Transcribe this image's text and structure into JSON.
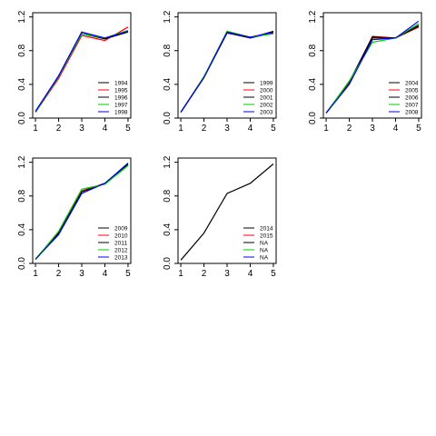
{
  "chart_data": [
    {
      "type": "line",
      "x": [
        1,
        2,
        3,
        4,
        5
      ],
      "ylim": [
        0,
        1.25
      ],
      "yticks": [
        "0.0",
        "0.4",
        "0.8",
        "1.2"
      ],
      "xticks": [
        "1",
        "2",
        "3",
        "4",
        "5"
      ],
      "grid": false,
      "legend_position": "bottom-right",
      "series": [
        {
          "name": "1994",
          "color": "#000000",
          "values": [
            0.07,
            0.48,
            1.0,
            0.94,
            1.02
          ]
        },
        {
          "name": "1995",
          "color": "#ff0000",
          "values": [
            0.07,
            0.47,
            0.98,
            0.92,
            1.08
          ]
        },
        {
          "name": "1996",
          "color": "#000000",
          "values": [
            0.08,
            0.5,
            1.02,
            0.94,
            1.03
          ]
        },
        {
          "name": "1997",
          "color": "#00cc00",
          "values": [
            0.07,
            0.49,
            1.0,
            0.95,
            1.04
          ]
        },
        {
          "name": "1998",
          "color": "#0000ff",
          "values": [
            0.08,
            0.5,
            1.02,
            0.95,
            1.03
          ]
        }
      ]
    },
    {
      "type": "line",
      "x": [
        1,
        2,
        3,
        4,
        5
      ],
      "ylim": [
        0,
        1.25
      ],
      "yticks": [
        "0.0",
        "0.4",
        "0.8",
        "1.2"
      ],
      "xticks": [
        "1",
        "2",
        "3",
        "4",
        "5"
      ],
      "grid": false,
      "legend_position": "bottom-right",
      "series": [
        {
          "name": "1999",
          "color": "#000000",
          "values": [
            0.07,
            0.48,
            1.01,
            0.95,
            1.01
          ]
        },
        {
          "name": "2000",
          "color": "#ff0000",
          "values": [
            0.07,
            0.48,
            1.02,
            0.95,
            1.02
          ]
        },
        {
          "name": "2001",
          "color": "#000000",
          "values": [
            0.07,
            0.49,
            1.02,
            0.95,
            1.03
          ]
        },
        {
          "name": "2002",
          "color": "#00cc00",
          "values": [
            0.07,
            0.49,
            1.03,
            0.96,
            1.0
          ]
        },
        {
          "name": "2003",
          "color": "#0000ff",
          "values": [
            0.07,
            0.48,
            1.02,
            0.96,
            1.02
          ]
        }
      ]
    },
    {
      "type": "line",
      "x": [
        1,
        2,
        3,
        4,
        5
      ],
      "ylim": [
        0,
        1.25
      ],
      "yticks": [
        "0.0",
        "0.4",
        "0.8",
        "1.2"
      ],
      "xticks": [
        "1",
        "2",
        "3",
        "4",
        "5"
      ],
      "grid": false,
      "legend_position": "bottom-right",
      "series": [
        {
          "name": "2004",
          "color": "#000000",
          "values": [
            0.06,
            0.42,
            0.95,
            0.95,
            1.1
          ]
        },
        {
          "name": "2005",
          "color": "#ff0000",
          "values": [
            0.06,
            0.41,
            0.97,
            0.95,
            1.08
          ]
        },
        {
          "name": "2006",
          "color": "#000000",
          "values": [
            0.06,
            0.43,
            0.96,
            0.95,
            1.09
          ]
        },
        {
          "name": "2007",
          "color": "#00cc00",
          "values": [
            0.06,
            0.44,
            0.9,
            0.95,
            1.12
          ]
        },
        {
          "name": "2008",
          "color": "#0000ff",
          "values": [
            0.06,
            0.4,
            0.93,
            0.95,
            1.15
          ]
        }
      ]
    },
    {
      "type": "line",
      "x": [
        1,
        2,
        3,
        4,
        5
      ],
      "ylim": [
        0,
        1.25
      ],
      "yticks": [
        "0.0",
        "0.4",
        "0.8",
        "1.2"
      ],
      "xticks": [
        "1",
        "2",
        "3",
        "4",
        "5"
      ],
      "grid": false,
      "legend_position": "bottom-right",
      "series": [
        {
          "name": "2009",
          "color": "#000000",
          "values": [
            0.05,
            0.36,
            0.85,
            0.95,
            1.18
          ]
        },
        {
          "name": "2010",
          "color": "#ff0000",
          "values": [
            0.05,
            0.37,
            0.86,
            0.95,
            1.17
          ]
        },
        {
          "name": "2011",
          "color": "#000000",
          "values": [
            0.05,
            0.36,
            0.85,
            0.95,
            1.18
          ]
        },
        {
          "name": "2012",
          "color": "#00cc00",
          "values": [
            0.05,
            0.38,
            0.88,
            0.94,
            1.16
          ]
        },
        {
          "name": "2013",
          "color": "#0000ff",
          "values": [
            0.05,
            0.34,
            0.83,
            0.95,
            1.19
          ]
        }
      ]
    },
    {
      "type": "line",
      "x": [
        1,
        2,
        3,
        4,
        5
      ],
      "ylim": [
        0,
        1.25
      ],
      "yticks": [
        "0.0",
        "0.4",
        "0.8",
        "1.2"
      ],
      "xticks": [
        "1",
        "2",
        "3",
        "4",
        "5"
      ],
      "grid": false,
      "legend_position": "bottom-right",
      "series": [
        {
          "name": "2014",
          "color": "#000000",
          "values": [
            0.04,
            0.36,
            0.83,
            0.95,
            1.18
          ]
        },
        {
          "name": "2015",
          "color": "#ff0000",
          "values": [
            null,
            null,
            null,
            null,
            null
          ]
        },
        {
          "name": "NA",
          "color": "#000000",
          "values": [
            null,
            null,
            null,
            null,
            null
          ]
        },
        {
          "name": "NA",
          "color": "#00cc00",
          "values": [
            null,
            null,
            null,
            null,
            null
          ]
        },
        {
          "name": "NA",
          "color": "#0000ff",
          "values": [
            null,
            null,
            null,
            null,
            null
          ]
        }
      ]
    }
  ]
}
